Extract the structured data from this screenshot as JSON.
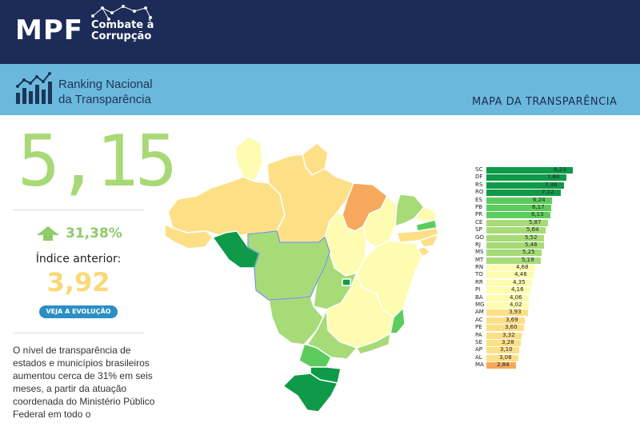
{
  "header": {
    "logo": "MPF",
    "subtitle_line1": "Combate à",
    "subtitle_line2": "Corrupção"
  },
  "banner": {
    "title_line1": "Ranking Nacional",
    "title_line2": "da Transparência",
    "map_title": "MAPA DA TRANSPARÊNCIA"
  },
  "summary": {
    "current_index": "5,15",
    "growth": "31,38%",
    "previous_label": "Índice anterior:",
    "previous_value": "3,92",
    "evolution_button": "VEJA A EVOLUÇÃO",
    "description": "O nível de transparência de estados e municípios brasileiros aumentou cerca de 31% em seis meses, a partir da atuação coordenada do Ministério Público Federal em todo o"
  },
  "colors": {
    "header_bg": "#1c2b57",
    "banner_bg": "#6bb8dd",
    "accent_green": "#a8d977",
    "accent_yellow": "#fbd878",
    "button_blue": "#2b8fc4"
  },
  "chart_data": {
    "type": "bar",
    "orientation": "horizontal",
    "categories": [
      "SC",
      "DF",
      "RS",
      "RO",
      "ES",
      "PB",
      "PR",
      "CE",
      "SP",
      "GO",
      "RJ",
      "MS",
      "MT",
      "RN",
      "TO",
      "RR",
      "PI",
      "BA",
      "MG",
      "AM",
      "AC",
      "PE",
      "PA",
      "SE",
      "AP",
      "AL",
      "MA"
    ],
    "values": [
      8.23,
      7.6,
      7.36,
      7.12,
      6.24,
      6.17,
      6.13,
      5.87,
      5.64,
      5.52,
      5.46,
      5.25,
      5.19,
      4.68,
      4.48,
      4.35,
      4.16,
      4.06,
      4.02,
      3.93,
      3.69,
      3.6,
      3.32,
      3.28,
      3.1,
      3.08,
      2.84
    ],
    "labels": [
      "8,23",
      "7,60",
      "7,36",
      "7,12",
      "6,24",
      "6,17",
      "6,13",
      "5,87",
      "5,64",
      "5,52",
      "5,46",
      "5,25",
      "5,19",
      "4,68",
      "4,48",
      "4,35",
      "4,16",
      "4,06",
      "4,02",
      "3,93",
      "3,69",
      "3,60",
      "3,32",
      "3,28",
      "3,10",
      "3,08",
      "2,84"
    ],
    "colors": [
      "#0e9a48",
      "#0e9a48",
      "#0e9a48",
      "#0e9a48",
      "#5ccc5c",
      "#5ccc5c",
      "#5ccc5c",
      "#a6db77",
      "#a6db77",
      "#a6db77",
      "#a6db77",
      "#a6db77",
      "#a6db77",
      "#fdfcb0",
      "#fdfcb0",
      "#fdfcb0",
      "#fdfcb0",
      "#fdfcb0",
      "#fdfcb0",
      "#fddf86",
      "#fddf86",
      "#fddf86",
      "#fddf86",
      "#fddf86",
      "#fddf86",
      "#fddf86",
      "#f6a85c"
    ],
    "xlim": [
      0,
      8.23
    ]
  }
}
